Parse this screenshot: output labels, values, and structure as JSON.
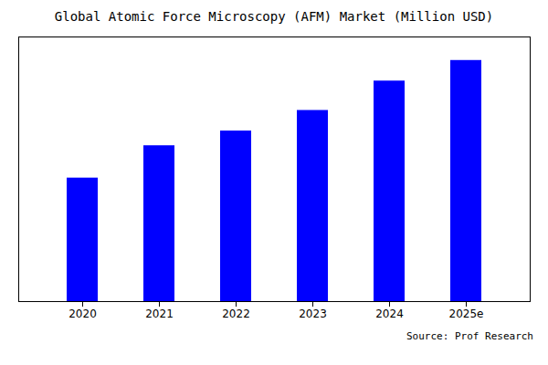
{
  "chart_data": {
    "type": "bar",
    "title": "Global Atomic Force Microscopy (AFM) Market (Million USD)",
    "categories": [
      "2020",
      "2021",
      "2022",
      "2023",
      "2024",
      "2025e"
    ],
    "values": [
      420,
      530,
      580,
      650,
      750,
      820
    ],
    "color": "#0000ff",
    "ylim": [
      0,
      900
    ],
    "tick_labels": "x",
    "annotations": [
      "Source: Prof Research"
    ]
  }
}
